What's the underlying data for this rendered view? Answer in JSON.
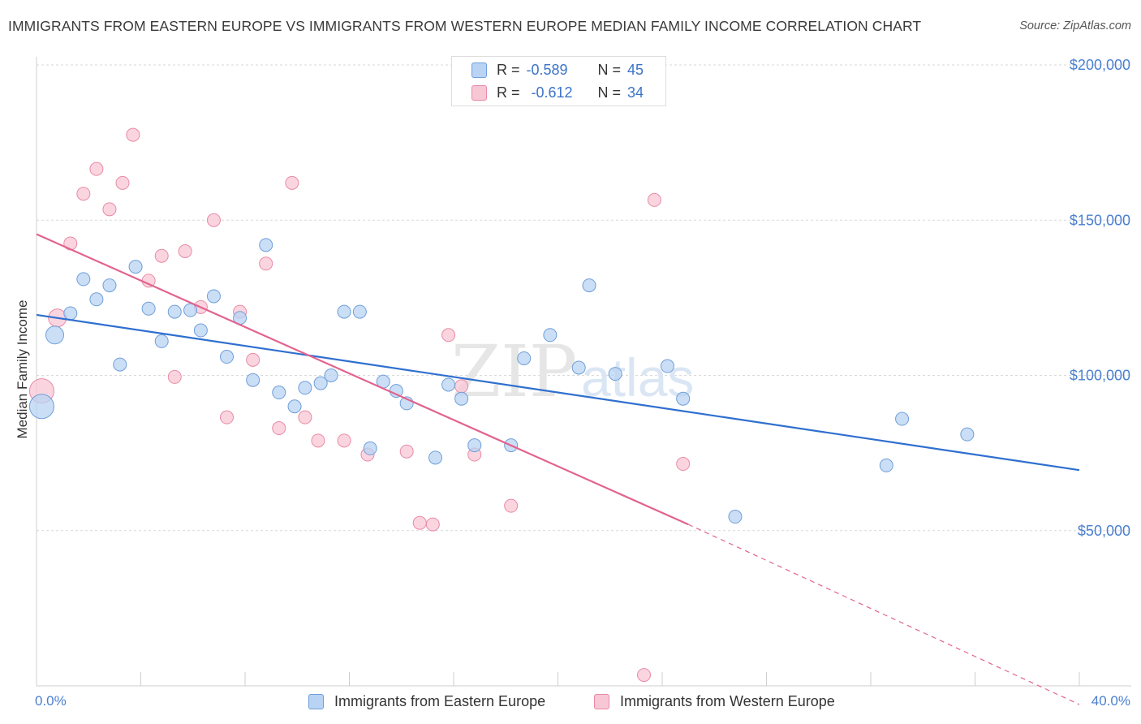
{
  "header": {
    "title": "IMMIGRANTS FROM EASTERN EUROPE VS IMMIGRANTS FROM WESTERN EUROPE MEDIAN FAMILY INCOME CORRELATION CHART",
    "source": "Source: ZipAtlas.com"
  },
  "watermark": {
    "zip": "ZIP",
    "atlas": "atlas"
  },
  "stats": {
    "r_label": "R =",
    "n_label": "N =",
    "series1": {
      "r": "-0.589",
      "n": "45"
    },
    "series2": {
      "r": "-0.612",
      "n": "34"
    }
  },
  "colors": {
    "series1_fill": "#b8d3f3",
    "series1_stroke": "#6f9fd8",
    "series1_line": "#2f6fcf",
    "series2_fill": "#f8c7d6",
    "series2_stroke": "#e98aa6",
    "series2_line": "#e2638e"
  },
  "chart_data": {
    "type": "scatter",
    "title": "IMMIGRANTS FROM EASTERN EUROPE VS IMMIGRANTS FROM WESTERN EUROPE MEDIAN FAMILY INCOME CORRELATION CHART",
    "xlabel": "",
    "ylabel": "Median Family Income",
    "xlim": [
      0,
      40
    ],
    "ylim": [
      0,
      205000
    ],
    "x_tick_labels": [
      "0.0%",
      "40.0%"
    ],
    "y_ticks": [
      {
        "value": 50000,
        "label": "$50,000"
      },
      {
        "value": 100000,
        "label": "$100,000"
      },
      {
        "value": 150000,
        "label": "$150,000"
      },
      {
        "value": 200000,
        "label": "$200,000"
      }
    ],
    "series": [
      {
        "name": "Immigrants from Eastern Europe",
        "trend": {
          "x1": 0,
          "y1": 119500,
          "x2": 40,
          "y2": 69500,
          "dashed_to": null
        },
        "points": [
          {
            "x": 0.2,
            "y": 90000,
            "size": "large"
          },
          {
            "x": 0.7,
            "y": 113000,
            "size": "medium"
          },
          {
            "x": 1.3,
            "y": 120000
          },
          {
            "x": 1.8,
            "y": 131000
          },
          {
            "x": 2.3,
            "y": 124500
          },
          {
            "x": 2.8,
            "y": 129000
          },
          {
            "x": 3.2,
            "y": 103500
          },
          {
            "x": 3.8,
            "y": 135000
          },
          {
            "x": 4.3,
            "y": 121500
          },
          {
            "x": 4.8,
            "y": 111000
          },
          {
            "x": 5.3,
            "y": 120500
          },
          {
            "x": 5.9,
            "y": 121000
          },
          {
            "x": 6.3,
            "y": 114500
          },
          {
            "x": 6.8,
            "y": 125500
          },
          {
            "x": 7.3,
            "y": 106000
          },
          {
            "x": 7.8,
            "y": 118500
          },
          {
            "x": 8.3,
            "y": 98500
          },
          {
            "x": 8.8,
            "y": 142000
          },
          {
            "x": 9.3,
            "y": 94500
          },
          {
            "x": 9.9,
            "y": 90000
          },
          {
            "x": 10.3,
            "y": 96000
          },
          {
            "x": 10.9,
            "y": 97500
          },
          {
            "x": 11.3,
            "y": 100000
          },
          {
            "x": 11.8,
            "y": 120500
          },
          {
            "x": 12.4,
            "y": 120500
          },
          {
            "x": 12.8,
            "y": 76500
          },
          {
            "x": 13.3,
            "y": 98000
          },
          {
            "x": 13.8,
            "y": 95000
          },
          {
            "x": 14.2,
            "y": 91000
          },
          {
            "x": 15.3,
            "y": 73500
          },
          {
            "x": 15.8,
            "y": 97000
          },
          {
            "x": 16.3,
            "y": 92500
          },
          {
            "x": 16.8,
            "y": 77500
          },
          {
            "x": 18.2,
            "y": 77500
          },
          {
            "x": 18.7,
            "y": 105500
          },
          {
            "x": 19.7,
            "y": 113000
          },
          {
            "x": 20.8,
            "y": 102500
          },
          {
            "x": 21.2,
            "y": 129000
          },
          {
            "x": 22.2,
            "y": 100500
          },
          {
            "x": 24.2,
            "y": 103000
          },
          {
            "x": 24.8,
            "y": 92500
          },
          {
            "x": 26.8,
            "y": 54500
          },
          {
            "x": 32.6,
            "y": 71000
          },
          {
            "x": 33.2,
            "y": 86000
          },
          {
            "x": 35.7,
            "y": 81000
          }
        ]
      },
      {
        "name": "Immigrants from Western Europe",
        "trend": {
          "x1": 0,
          "y1": 145500,
          "x2": 25,
          "y2": 52000,
          "dashed_to": {
            "x": 40,
            "y": -6000
          }
        },
        "points": [
          {
            "x": 0.2,
            "y": 95000,
            "size": "large"
          },
          {
            "x": 0.8,
            "y": 118500,
            "size": "medium"
          },
          {
            "x": 1.3,
            "y": 142500
          },
          {
            "x": 1.8,
            "y": 158500
          },
          {
            "x": 2.3,
            "y": 166500
          },
          {
            "x": 2.8,
            "y": 153500
          },
          {
            "x": 3.3,
            "y": 162000
          },
          {
            "x": 3.7,
            "y": 177500
          },
          {
            "x": 4.3,
            "y": 130500
          },
          {
            "x": 4.8,
            "y": 138500
          },
          {
            "x": 5.3,
            "y": 99500
          },
          {
            "x": 5.7,
            "y": 140000
          },
          {
            "x": 6.3,
            "y": 122000
          },
          {
            "x": 6.8,
            "y": 150000
          },
          {
            "x": 7.3,
            "y": 86500
          },
          {
            "x": 7.8,
            "y": 120500
          },
          {
            "x": 8.3,
            "y": 105000
          },
          {
            "x": 8.8,
            "y": 136000
          },
          {
            "x": 9.3,
            "y": 83000
          },
          {
            "x": 9.8,
            "y": 162000
          },
          {
            "x": 10.3,
            "y": 86500
          },
          {
            "x": 10.8,
            "y": 79000
          },
          {
            "x": 11.8,
            "y": 79000
          },
          {
            "x": 12.7,
            "y": 74500
          },
          {
            "x": 14.2,
            "y": 75500
          },
          {
            "x": 14.7,
            "y": 52500
          },
          {
            "x": 15.2,
            "y": 52000
          },
          {
            "x": 15.8,
            "y": 113000
          },
          {
            "x": 16.3,
            "y": 96500
          },
          {
            "x": 16.8,
            "y": 74500
          },
          {
            "x": 18.2,
            "y": 58000
          },
          {
            "x": 23.3,
            "y": 3500
          },
          {
            "x": 23.7,
            "y": 156500
          },
          {
            "x": 24.8,
            "y": 71500
          }
        ]
      }
    ]
  }
}
